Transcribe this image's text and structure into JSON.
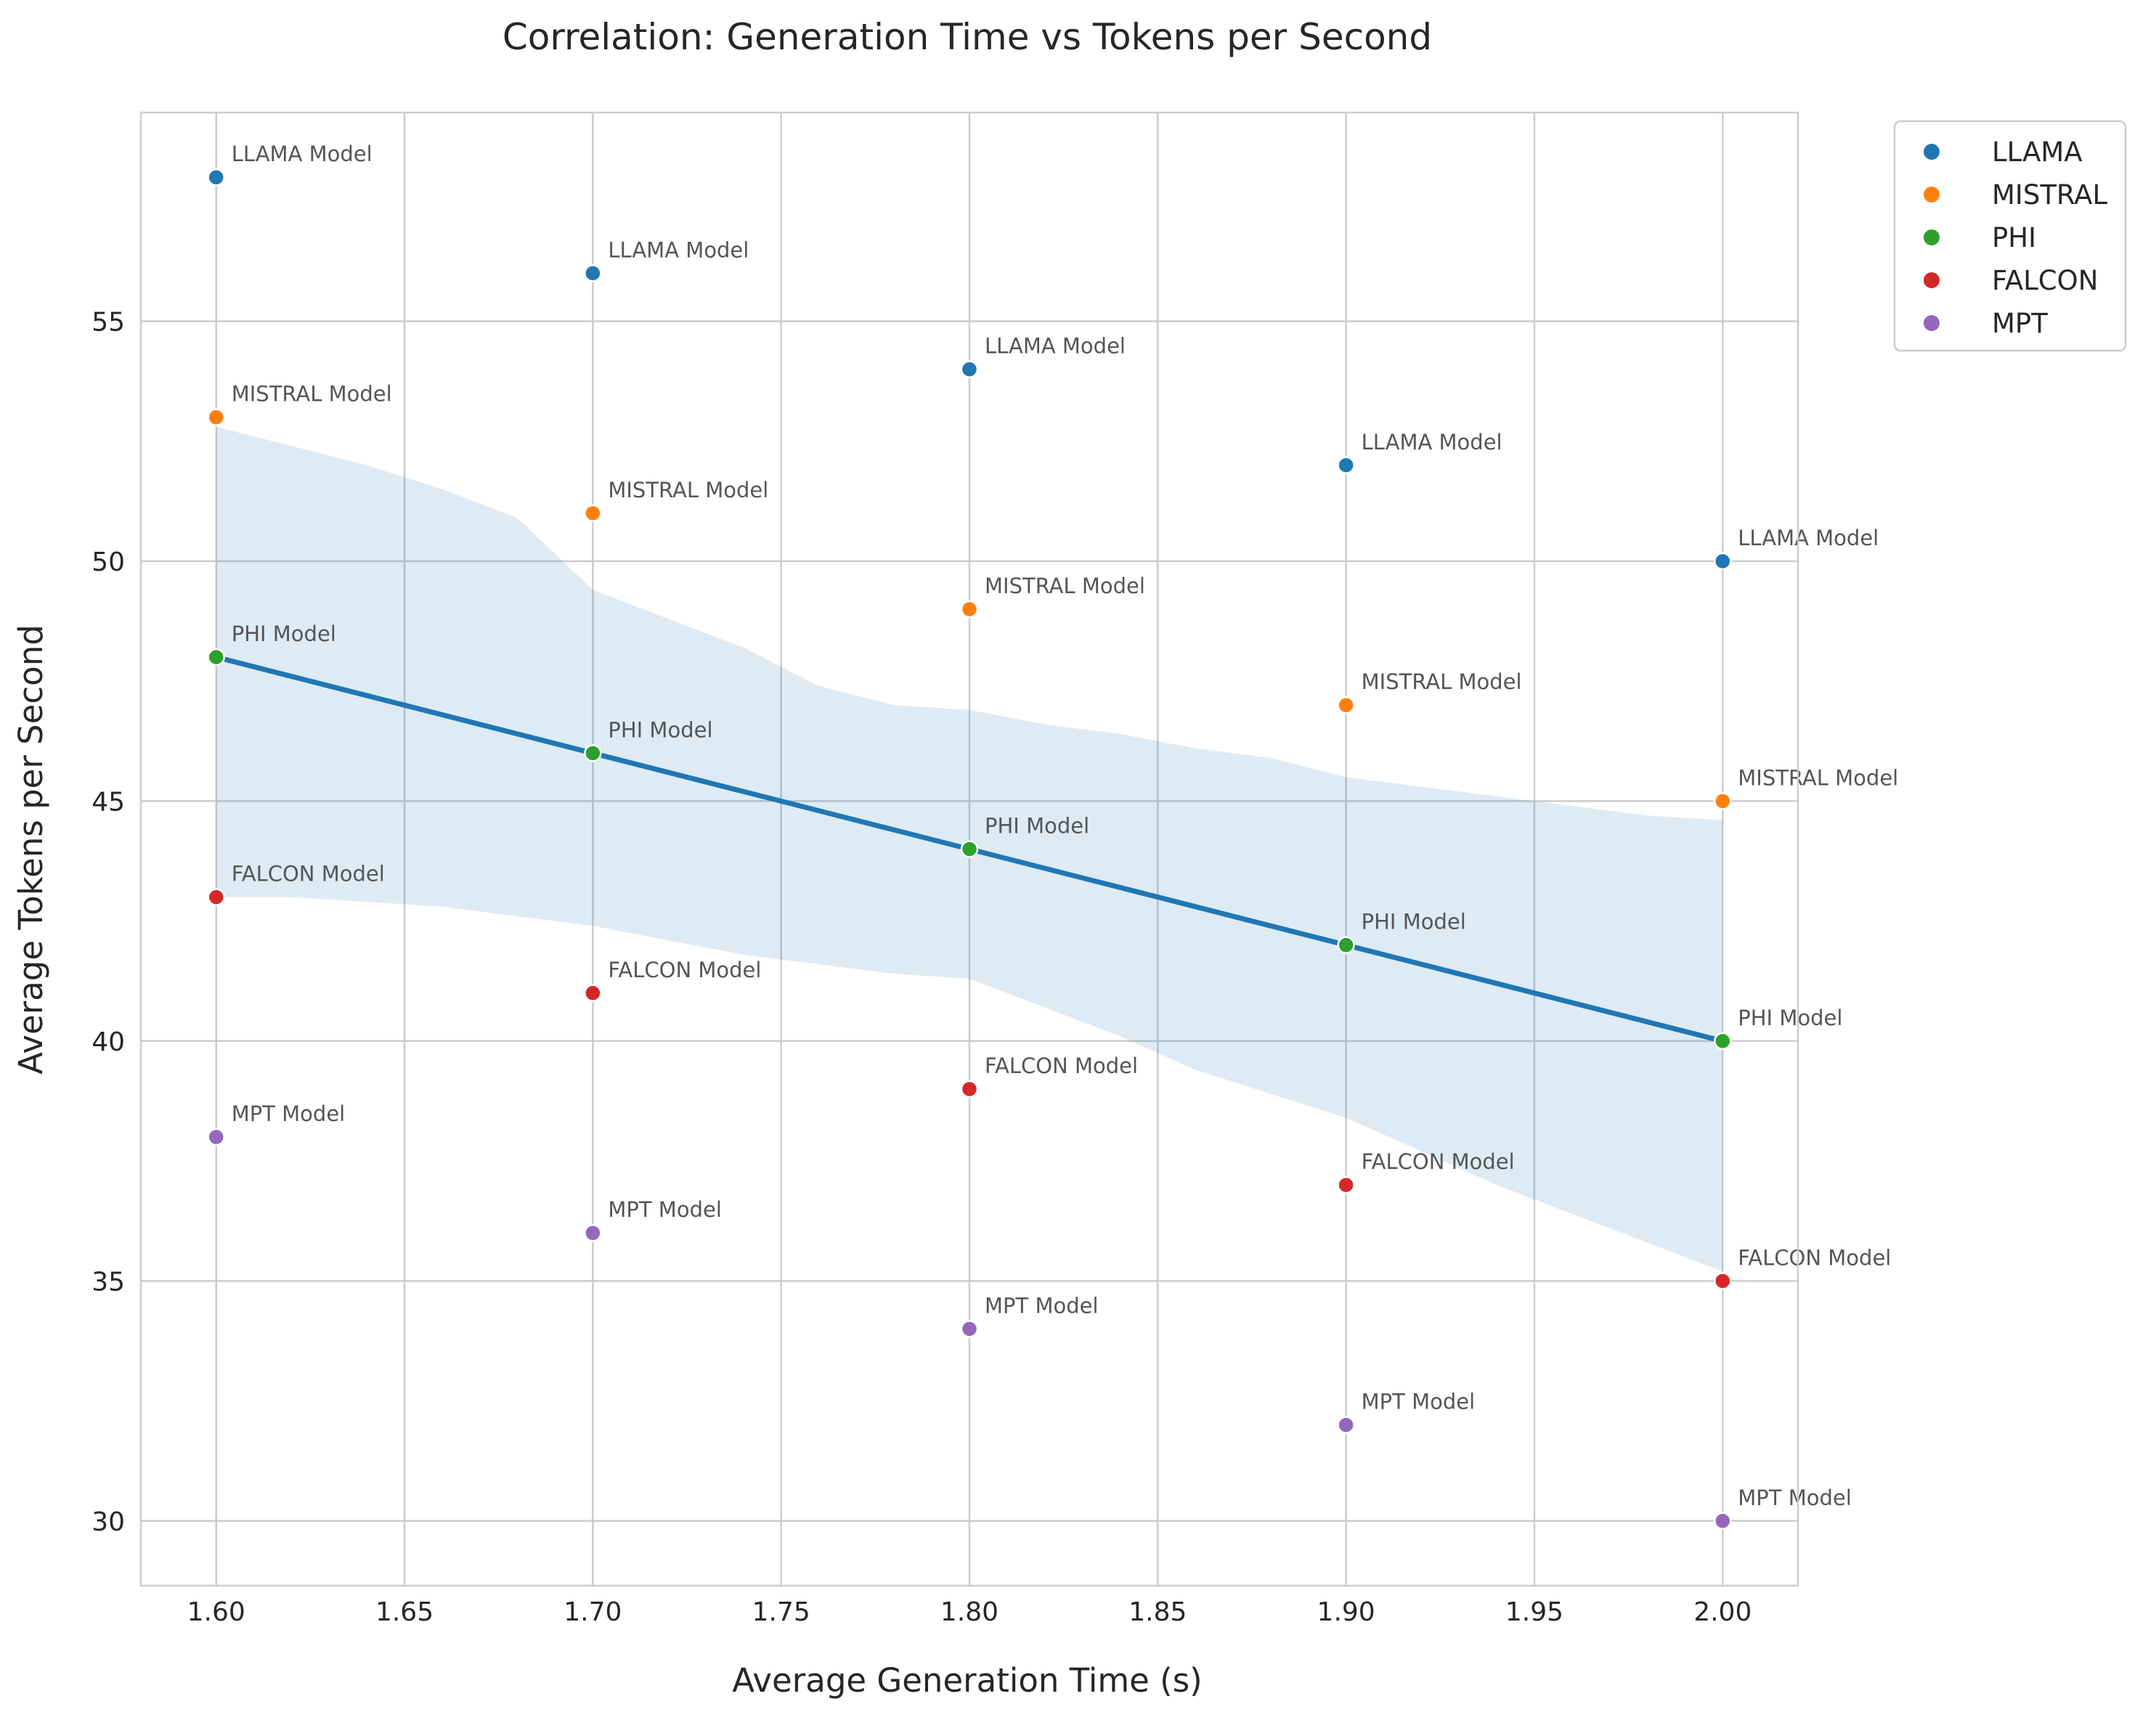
{
  "chart_data": {
    "type": "scatter",
    "title": "Correlation: Generation Time vs Tokens per Second",
    "xlabel": "Average Generation Time (s)",
    "ylabel": "Average Tokens per Second",
    "xlim": [
      1.58,
      2.02
    ],
    "ylim": [
      28.65,
      59.35
    ],
    "xticks": [
      1.6,
      1.65,
      1.7,
      1.75,
      1.8,
      1.85,
      1.9,
      1.95,
      2.0
    ],
    "xtick_labels": [
      "1.60",
      "1.65",
      "1.70",
      "1.75",
      "1.80",
      "1.85",
      "1.90",
      "1.95",
      "2.00"
    ],
    "yticks": [
      30,
      35,
      40,
      45,
      50,
      55
    ],
    "ytick_labels": [
      "30",
      "35",
      "40",
      "45",
      "50",
      "55"
    ],
    "grid": true,
    "legend_position": "outside-top-right",
    "series": [
      {
        "name": "LLAMA",
        "color": "#1f77b4",
        "point_label": "LLAMA Model",
        "x": [
          1.6,
          1.7,
          1.8,
          1.9,
          2.0
        ],
        "y": [
          58,
          56,
          54,
          52,
          50
        ]
      },
      {
        "name": "MISTRAL",
        "color": "#ff7f0e",
        "point_label": "MISTRAL Model",
        "x": [
          1.6,
          1.7,
          1.8,
          1.9,
          2.0
        ],
        "y": [
          53,
          51,
          49,
          47,
          45
        ]
      },
      {
        "name": "PHI",
        "color": "#2ca02c",
        "point_label": "PHI Model",
        "x": [
          1.6,
          1.7,
          1.8,
          1.9,
          2.0
        ],
        "y": [
          48,
          46,
          44,
          42,
          40
        ]
      },
      {
        "name": "FALCON",
        "color": "#d62728",
        "point_label": "FALCON Model",
        "x": [
          1.6,
          1.7,
          1.8,
          1.9,
          2.0
        ],
        "y": [
          43,
          41,
          39,
          37,
          35
        ]
      },
      {
        "name": "MPT",
        "color": "#9467bd",
        "point_label": "MPT Model",
        "x": [
          1.6,
          1.7,
          1.8,
          1.9,
          2.0
        ],
        "y": [
          38,
          36,
          34,
          32,
          30
        ]
      }
    ],
    "regression": {
      "color": "#1f77b4",
      "band_color": "#1f77b4",
      "x": [
        1.6,
        2.0
      ],
      "y": [
        48,
        40
      ],
      "band": [
        {
          "x": 1.6,
          "lower": 43.0,
          "upper": 52.8
        },
        {
          "x": 1.62,
          "lower": 43.0,
          "upper": 52.4
        },
        {
          "x": 1.64,
          "lower": 42.9,
          "upper": 52.0
        },
        {
          "x": 1.66,
          "lower": 42.8,
          "upper": 51.5
        },
        {
          "x": 1.68,
          "lower": 42.6,
          "upper": 50.9
        },
        {
          "x": 1.7,
          "lower": 42.4,
          "upper": 49.4
        },
        {
          "x": 1.72,
          "lower": 42.1,
          "upper": 48.8
        },
        {
          "x": 1.74,
          "lower": 41.8,
          "upper": 48.2
        },
        {
          "x": 1.76,
          "lower": 41.6,
          "upper": 47.4
        },
        {
          "x": 1.78,
          "lower": 41.4,
          "upper": 47.0
        },
        {
          "x": 1.8,
          "lower": 41.3,
          "upper": 46.9
        },
        {
          "x": 1.82,
          "lower": 40.7,
          "upper": 46.6
        },
        {
          "x": 1.84,
          "lower": 40.1,
          "upper": 46.4
        },
        {
          "x": 1.86,
          "lower": 39.4,
          "upper": 46.1
        },
        {
          "x": 1.88,
          "lower": 38.9,
          "upper": 45.9
        },
        {
          "x": 1.9,
          "lower": 38.4,
          "upper": 45.5
        },
        {
          "x": 1.92,
          "lower": 37.7,
          "upper": 45.3
        },
        {
          "x": 1.94,
          "lower": 37.0,
          "upper": 45.1
        },
        {
          "x": 1.96,
          "lower": 36.4,
          "upper": 44.9
        },
        {
          "x": 1.98,
          "lower": 35.8,
          "upper": 44.7
        },
        {
          "x": 2.0,
          "lower": 35.2,
          "upper": 44.6
        }
      ]
    }
  }
}
